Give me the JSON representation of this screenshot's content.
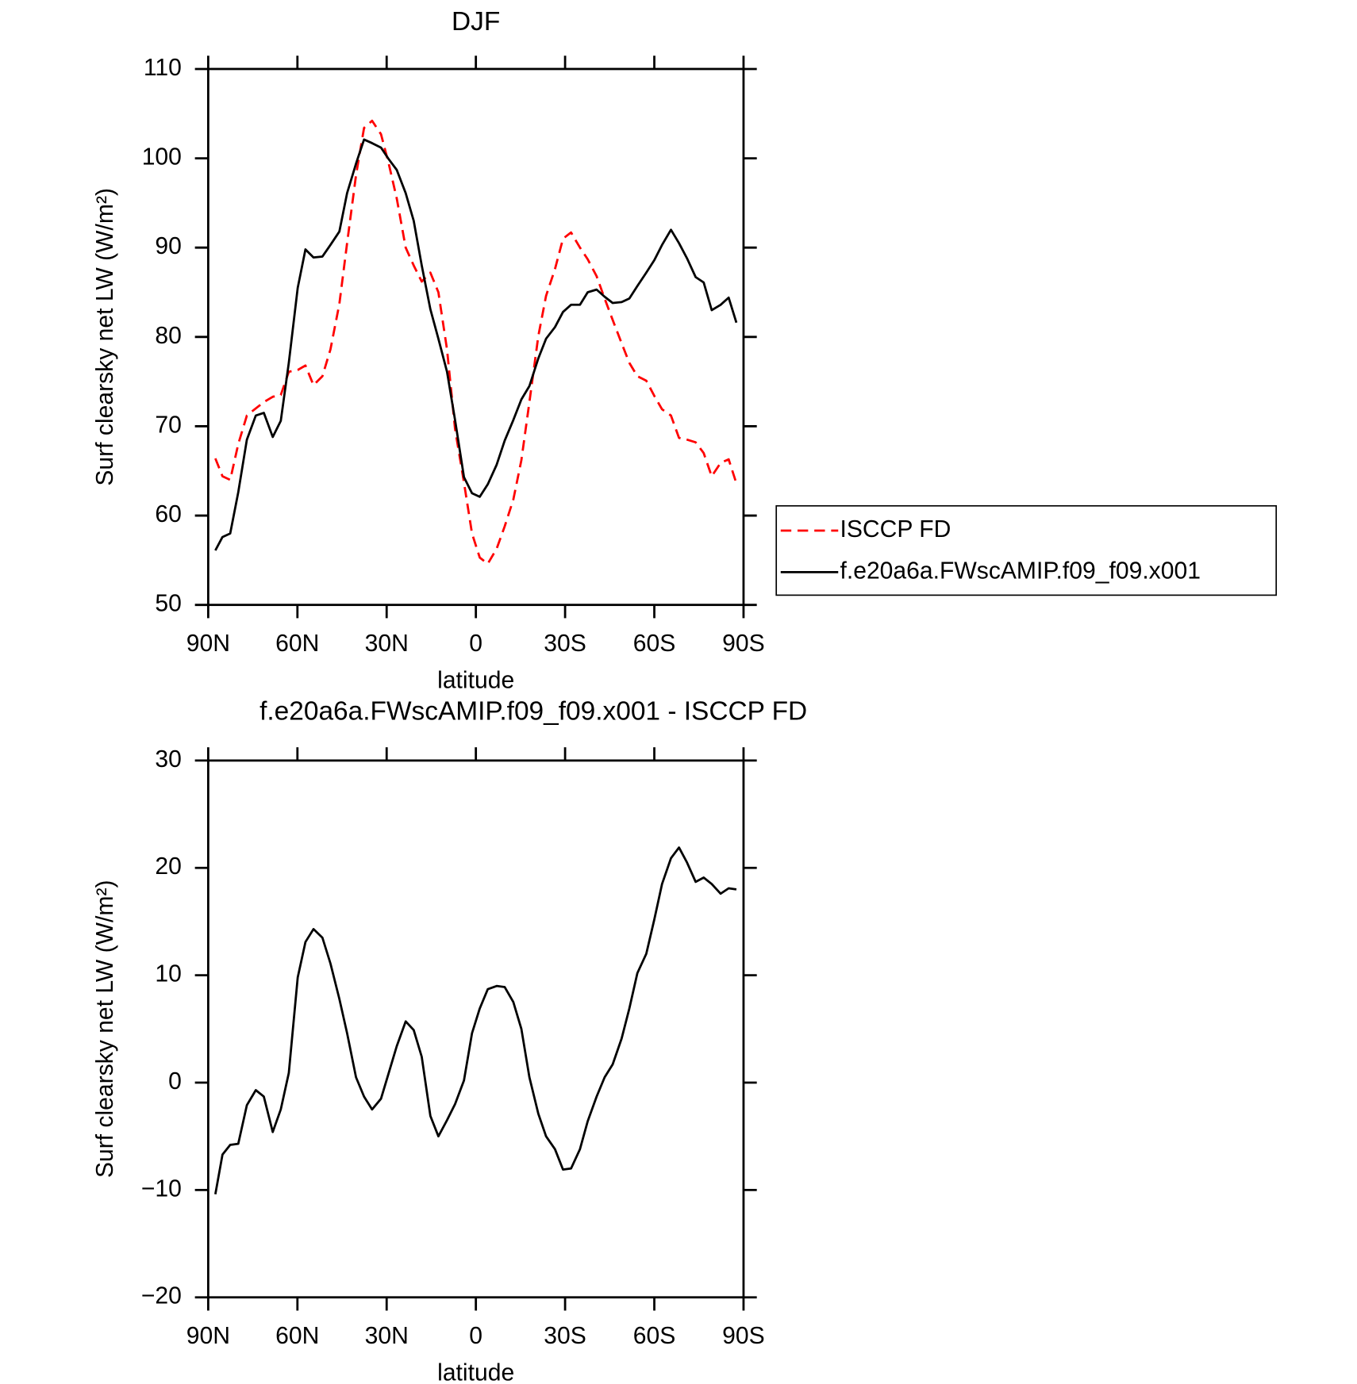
{
  "chart_data": [
    {
      "type": "line",
      "title": "DJF",
      "xlabel": "latitude",
      "ylabel": "Surf clearsky net LW (W/m²)",
      "xlim": [
        90,
        -90
      ],
      "xticks": [
        {
          "value": 90,
          "label": "90N"
        },
        {
          "value": 60,
          "label": "60N"
        },
        {
          "value": 30,
          "label": "30N"
        },
        0,
        {
          "value": -30,
          "label": "30S"
        },
        {
          "value": -60,
          "label": "60S"
        },
        {
          "value": -90,
          "label": "90S"
        }
      ],
      "ylim": [
        50,
        110
      ],
      "yticks": [
        50,
        60,
        70,
        80,
        90,
        100,
        110
      ],
      "legend": "right",
      "x": [
        87.6,
        85.2,
        82.6,
        79.9,
        77.0,
        74.0,
        71.3,
        68.3,
        65.6,
        62.9,
        59.9,
        57.3,
        54.6,
        51.6,
        48.9,
        45.9,
        43.3,
        40.3,
        37.6,
        34.9,
        31.9,
        29.3,
        26.6,
        23.6,
        20.9,
        18.2,
        15.3,
        12.6,
        9.7,
        7.0,
        4.0,
        1.3,
        -1.3,
        -4.0,
        -7.0,
        -9.7,
        -12.6,
        -15.3,
        -18.0,
        -21.0,
        -23.6,
        -26.6,
        -29.3,
        -32.0,
        -35.0,
        -37.6,
        -40.6,
        -43.3,
        -46.0,
        -49.0,
        -51.6,
        -54.3,
        -57.3,
        -60.0,
        -62.6,
        -65.6,
        -68.3,
        -71.0,
        -73.9,
        -76.6,
        -79.3,
        -82.3,
        -85.0,
        -87.6
      ],
      "series": [
        {
          "name": "ISCCP FD",
          "color": "#ff0000",
          "dashed": true,
          "values": [
            66.4,
            64.4,
            64.0,
            68.0,
            71.2,
            72.0,
            72.7,
            73.3,
            73.5,
            76.1,
            76.3,
            76.8,
            74.6,
            75.6,
            78.6,
            83.7,
            90.5,
            98.1,
            103.4,
            104.2,
            102.7,
            99.4,
            95.5,
            90.0,
            88.0,
            86.2,
            87.2,
            85.0,
            78.6,
            69.7,
            63.7,
            58.0,
            55.3,
            54.6,
            56.3,
            58.8,
            61.8,
            66.2,
            72.7,
            80.1,
            84.6,
            87.6,
            91.0,
            91.7,
            90.0,
            88.7,
            86.8,
            84.3,
            81.9,
            79.3,
            77.1,
            75.6,
            75.1,
            73.4,
            71.9,
            71.2,
            68.7,
            68.5,
            68.2,
            67.0,
            64.4,
            65.9,
            66.3,
            63.6
          ]
        },
        {
          "name": "f.e20a6a.FWscAMIP.f09_f09.x001",
          "color": "#000000",
          "dashed": false,
          "values": [
            56.1,
            57.6,
            58.0,
            62.6,
            68.5,
            71.2,
            71.5,
            68.8,
            70.6,
            77.1,
            85.5,
            89.8,
            88.9,
            89.0,
            90.3,
            91.8,
            96.1,
            99.4,
            102.1,
            101.7,
            101.2,
            99.9,
            98.7,
            96.1,
            93.0,
            88.0,
            83.1,
            79.8,
            76.1,
            70.7,
            64.3,
            62.5,
            62.1,
            63.5,
            65.7,
            68.4,
            70.7,
            73.0,
            74.5,
            77.6,
            79.8,
            81.1,
            82.8,
            83.6,
            83.6,
            85.0,
            85.3,
            84.5,
            83.8,
            83.9,
            84.3,
            85.7,
            87.2,
            88.6,
            90.3,
            92.0,
            90.5,
            88.8,
            86.7,
            86.1,
            83.0,
            83.6,
            84.4,
            81.6
          ]
        }
      ]
    },
    {
      "type": "line",
      "title": "f.e20a6a.FWscAMIP.f09_f09.x001 - ISCCP FD",
      "xlabel": "latitude",
      "ylabel": "Surf clearsky net LW (W/m²)",
      "xlim": [
        90,
        -90
      ],
      "xticks": [
        {
          "value": 90,
          "label": "90N"
        },
        {
          "value": 60,
          "label": "60N"
        },
        {
          "value": 30,
          "label": "30N"
        },
        0,
        {
          "value": -30,
          "label": "30S"
        },
        {
          "value": -60,
          "label": "60S"
        },
        {
          "value": -90,
          "label": "90S"
        }
      ],
      "ylim": [
        -20,
        30
      ],
      "yticks": [
        {
          "value": -20,
          "label": "−20"
        },
        {
          "value": -10,
          "label": "−10"
        },
        0,
        10,
        20,
        30
      ],
      "x": [
        87.6,
        85.2,
        82.6,
        79.9,
        77.0,
        74.0,
        71.3,
        68.3,
        65.6,
        62.9,
        59.9,
        57.3,
        54.6,
        51.6,
        48.9,
        45.9,
        43.3,
        40.3,
        37.6,
        34.9,
        31.9,
        29.3,
        26.6,
        23.6,
        20.9,
        18.2,
        15.3,
        12.6,
        9.7,
        7.0,
        4.0,
        1.3,
        -1.3,
        -4.0,
        -7.0,
        -9.7,
        -12.6,
        -15.3,
        -18.0,
        -21.0,
        -23.6,
        -26.6,
        -29.3,
        -32.0,
        -35.0,
        -37.6,
        -40.6,
        -43.3,
        -46.0,
        -49.0,
        -51.6,
        -54.3,
        -57.3,
        -60.0,
        -62.6,
        -65.6,
        -68.3,
        -71.0,
        -73.9,
        -76.6,
        -79.3,
        -82.3,
        -85.0,
        -87.6
      ],
      "series": [
        {
          "color": "#000000",
          "dashed": false,
          "values": [
            -10.4,
            -6.7,
            -5.8,
            -5.7,
            -2.1,
            -0.7,
            -1.3,
            -4.6,
            -2.5,
            0.9,
            9.8,
            13.1,
            14.3,
            13.5,
            11.1,
            7.8,
            4.6,
            0.5,
            -1.3,
            -2.5,
            -1.5,
            0.9,
            3.4,
            5.7,
            4.9,
            2.4,
            -3.1,
            -5.0,
            -3.5,
            -2.0,
            0.2,
            4.6,
            6.9,
            8.7,
            9.0,
            8.9,
            7.5,
            5.0,
            0.5,
            -2.9,
            -5.0,
            -6.2,
            -8.1,
            -8.0,
            -6.2,
            -3.6,
            -1.3,
            0.5,
            1.7,
            4.1,
            6.9,
            10.2,
            12.0,
            15.2,
            18.5,
            20.9,
            21.9,
            20.5,
            18.7,
            19.1,
            18.5,
            17.6,
            18.1,
            18.0
          ]
        }
      ]
    }
  ]
}
